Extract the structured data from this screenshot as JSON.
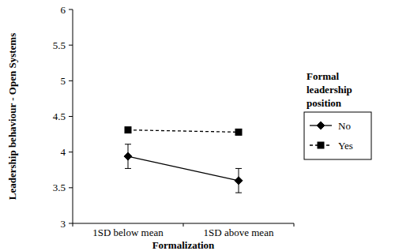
{
  "chart_data": {
    "type": "line",
    "x_label": "Formalization",
    "y_label": "Leadership behaviour - Open Systems",
    "legend_title": "Formal leadership position",
    "categories": [
      "1SD below mean",
      "1SD above mean"
    ],
    "series": [
      {
        "name": "No",
        "color": "#000000",
        "marker": "diamond",
        "line_style": "solid",
        "values": [
          3.94,
          3.6
        ],
        "errors": [
          0.17,
          0.17
        ]
      },
      {
        "name": "Yes",
        "color": "#000000",
        "marker": "square",
        "line_style": "dashed",
        "values": [
          4.31,
          4.28
        ]
      }
    ],
    "ylim": [
      3,
      6
    ],
    "yticks": [
      3,
      3.5,
      4,
      4.5,
      5,
      5.5,
      6
    ],
    "grid": false,
    "legend": "right"
  }
}
